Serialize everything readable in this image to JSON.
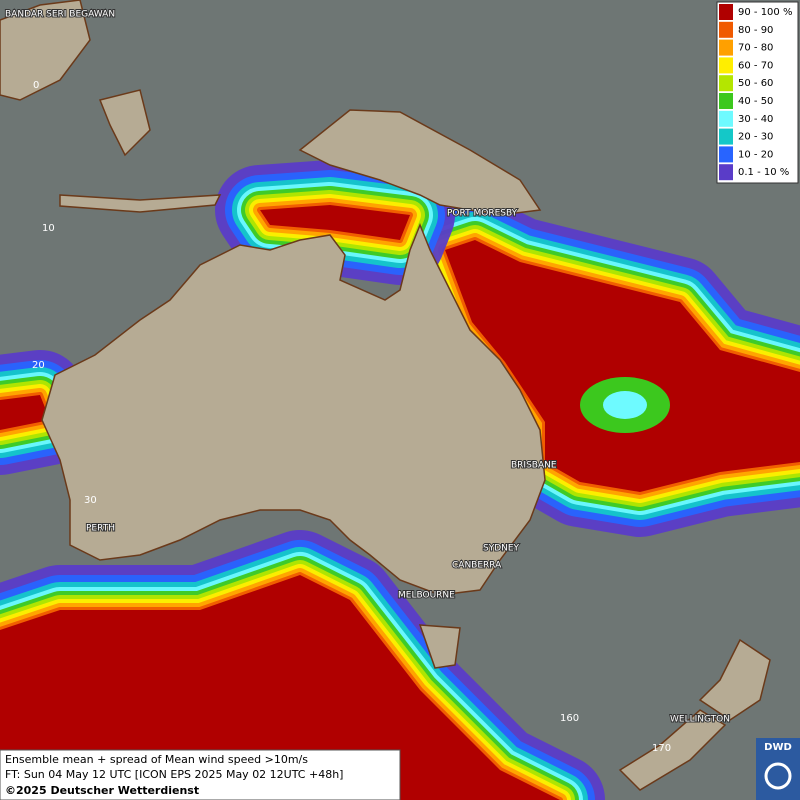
{
  "legend": {
    "items": [
      {
        "label": "90 - 100 %",
        "color": "#b00000"
      },
      {
        "label": "80 - 90",
        "color": "#f05a00"
      },
      {
        "label": "70 - 80",
        "color": "#ffa000"
      },
      {
        "label": "60 - 70",
        "color": "#ffee00"
      },
      {
        "label": "50 - 60",
        "color": "#b4e600"
      },
      {
        "label": "40 - 50",
        "color": "#3cc81e"
      },
      {
        "label": "30 - 40",
        "color": "#6efaff"
      },
      {
        "label": "20 - 30",
        "color": "#14c8c8"
      },
      {
        "label": "10 - 20",
        "color": "#2864ff"
      },
      {
        "label": "0.1 - 10 %",
        "color": "#5a3cc8"
      }
    ]
  },
  "places": [
    "BANDAR SERI BEGAWAN",
    "PORT MORESBY",
    "BRISBANE",
    "SYDNEY",
    "CANBERRA",
    "MELBOURNE",
    "PERTH",
    "WELLINGTON"
  ],
  "grid_labels": [
    "0",
    "10",
    "20",
    "30",
    "160",
    "170"
  ],
  "footer": {
    "line1": "Ensemble mean + spread of Mean wind speed >10m/s",
    "line2": "FT: Sun 04 May 12 UTC [ICON EPS 2025 May 02 12UTC +48h]",
    "copyright": "©2025 Deutscher Wetterdienst"
  },
  "logo": "DWD"
}
